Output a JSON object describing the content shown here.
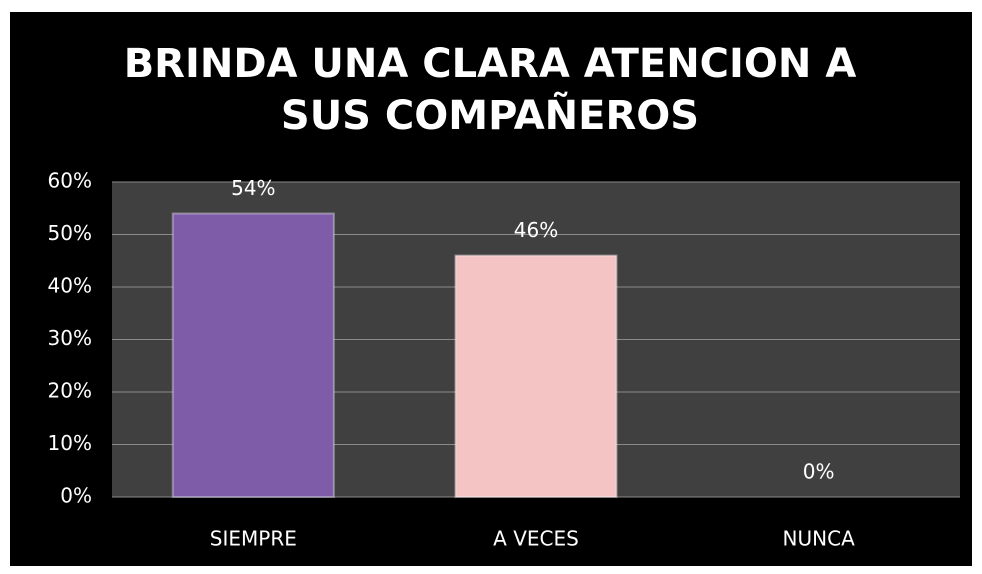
{
  "chart_data": {
    "type": "bar",
    "title": "BRINDA UNA CLARA ATENCION A SUS COMPAÑEROS",
    "categories": [
      "SIEMPRE",
      "A VECES",
      "NUNCA"
    ],
    "values": [
      54,
      46,
      0
    ],
    "value_labels": [
      "54%",
      "46%",
      "0%"
    ],
    "colors": [
      "#7e5ca8",
      "#f4c3c3",
      "#9bbb59"
    ],
    "ylim": [
      0,
      60
    ],
    "yticks": [
      {
        "value": 0,
        "label": "0%"
      },
      {
        "value": 10,
        "label": "10%"
      },
      {
        "value": 20,
        "label": "20%"
      },
      {
        "value": 30,
        "label": "30%"
      },
      {
        "value": 40,
        "label": "40%"
      },
      {
        "value": 50,
        "label": "50%"
      },
      {
        "value": 60,
        "label": "60%"
      }
    ],
    "grid": true
  }
}
